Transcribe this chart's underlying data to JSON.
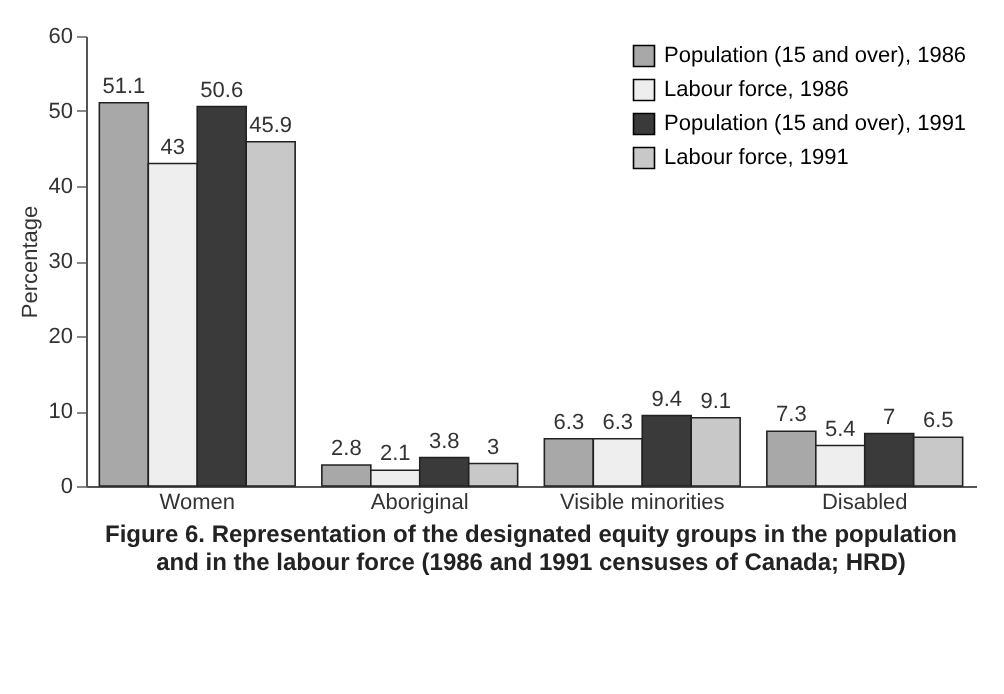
{
  "chart_data": {
    "type": "bar",
    "ylabel": "Percentage",
    "categories": [
      "Women",
      "Aboriginal",
      "Visible minorities",
      "Disabled"
    ],
    "series": [
      {
        "name": "Population (15 and over), 1986",
        "color": "#a8a8a8",
        "values": [
          51.1,
          2.8,
          6.3,
          7.3
        ]
      },
      {
        "name": "Labour force, 1986",
        "color": "#eeeeee",
        "values": [
          43,
          2.1,
          6.3,
          5.4
        ]
      },
      {
        "name": "Population (15 and over), 1991",
        "color": "#3a3a3a",
        "values": [
          50.6,
          3.8,
          9.4,
          7
        ]
      },
      {
        "name": "Labour force, 1991",
        "color": "#c8c8c8",
        "values": [
          45.9,
          3,
          9.1,
          6.5
        ]
      }
    ],
    "ylim": [
      0,
      60
    ],
    "yticks": [
      0,
      10,
      20,
      30,
      40,
      50,
      60
    ],
    "grid": false,
    "legend": "top right",
    "data_labels": true,
    "annotations": [
      "Figure 6. Representation of the designated equity groups in the population and in the labour force (1986 and 1991 censuses of Canada; HRD)"
    ]
  }
}
